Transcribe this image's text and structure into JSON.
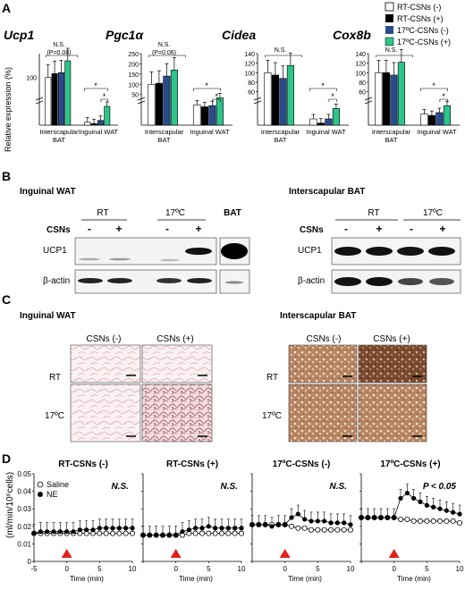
{
  "panels": {
    "A": "A",
    "B": "B",
    "C": "C",
    "D": "D"
  },
  "colors": {
    "rt_minus": "#ffffff",
    "rt_plus": "#000000",
    "c17_minus": "#2a4b8c",
    "c17_plus": "#2ec48a",
    "red_arrow": "#e0201b"
  },
  "legend_A": [
    {
      "label": "RT-CSNs (-)"
    },
    {
      "label": "RT-CSNs (+)"
    },
    {
      "label": "17ºC-CSNs (-)"
    },
    {
      "label": "17ºC-CSNs (+)"
    }
  ],
  "panelA": {
    "ylabel": "Relative expression (%)",
    "group1": "Interscapular",
    "group1b": "BAT",
    "group2": "Inguinal WAT",
    "genes": [
      {
        "name": "Ucp1",
        "ns": "N.S.",
        "p": "(P=0.08)"
      },
      {
        "name": "Pgc1α",
        "ns": "N.S.",
        "p": "(P=0.06)"
      },
      {
        "name": "Cidea",
        "ns": "N.S.",
        "p": ""
      },
      {
        "name": "Cox8b",
        "ns": "N.S.",
        "p": ""
      }
    ]
  },
  "chart_data": [
    {
      "type": "bar",
      "title": "Ucp1",
      "ylabel": "Relative expression (%)",
      "categories": [
        "Interscapular BAT",
        "Inguinal WAT"
      ],
      "series": [
        {
          "name": "RT-CSNs (-)",
          "values": [
            100,
            1
          ]
        },
        {
          "name": "RT-CSNs (+)",
          "values": [
            108,
            0.5
          ]
        },
        {
          "name": "17ºC-CSNs (-)",
          "values": [
            110,
            1.5
          ]
        },
        {
          "name": "17ºC-CSNs (+)",
          "values": [
            135,
            6
          ]
        }
      ]
    },
    {
      "type": "bar",
      "title": "Pgc1α",
      "ylabel": "",
      "ylim": [
        0,
        250
      ],
      "categories": [
        "Interscapular BAT",
        "Inguinal WAT"
      ],
      "series": [
        {
          "name": "RT-CSNs (-)",
          "values": [
            100,
            52
          ]
        },
        {
          "name": "RT-CSNs (+)",
          "values": [
            105,
            47
          ]
        },
        {
          "name": "17ºC-CSNs (-)",
          "values": [
            140,
            50
          ]
        },
        {
          "name": "17ºC-CSNs (+)",
          "values": [
            170,
            70
          ]
        }
      ]
    },
    {
      "type": "bar",
      "title": "Cidea",
      "ylabel": "",
      "ylim": [
        0,
        140
      ],
      "categories": [
        "Interscapular BAT",
        "Inguinal WAT"
      ],
      "series": [
        {
          "name": "RT-CSNs (-)",
          "values": [
            100,
            1.5
          ]
        },
        {
          "name": "RT-CSNs (+)",
          "values": [
            95,
            0.5
          ]
        },
        {
          "name": "17ºC-CSNs (-)",
          "values": [
            88,
            1.5
          ]
        },
        {
          "name": "17ºC-CSNs (+)",
          "values": [
            115,
            4
          ]
        }
      ]
    },
    {
      "type": "bar",
      "title": "Cox8b",
      "ylabel": "",
      "ylim": [
        0,
        140
      ],
      "categories": [
        "Interscapular BAT",
        "Inguinal WAT"
      ],
      "series": [
        {
          "name": "RT-CSNs (-)",
          "values": [
            100,
            8
          ]
        },
        {
          "name": "RT-CSNs (+)",
          "values": [
            100,
            7
          ]
        },
        {
          "name": "17ºC-CSNs (-)",
          "values": [
            95,
            9
          ]
        },
        {
          "name": "17ºC-CSNs (+)",
          "values": [
            122,
            14
          ]
        }
      ]
    },
    {
      "type": "line",
      "title": "RT-CSNs (-)",
      "xlabel": "Time (min)",
      "ylabel": "(ml/min/10⁶cells)",
      "xlim": [
        -5,
        10
      ],
      "ylim": [
        0,
        0.05
      ],
      "x": [
        -5,
        -4,
        -3,
        -2,
        -1,
        0,
        1,
        2,
        3,
        4,
        5,
        6,
        7,
        8,
        9,
        10
      ],
      "series": [
        {
          "name": "Saline",
          "values": [
            0.016,
            0.016,
            0.016,
            0.016,
            0.016,
            0.016,
            0.016,
            0.016,
            0.016,
            0.016,
            0.016,
            0.016,
            0.016,
            0.016,
            0.016,
            0.016
          ]
        },
        {
          "name": "NE",
          "values": [
            0.016,
            0.017,
            0.017,
            0.017,
            0.017,
            0.017,
            0.017,
            0.018,
            0.018,
            0.018,
            0.019,
            0.019,
            0.019,
            0.019,
            0.019,
            0.019
          ]
        }
      ],
      "annotation": "N.S."
    },
    {
      "type": "line",
      "title": "RT-CSNs (+)",
      "xlabel": "Time (min)",
      "ylabel": "",
      "xlim": [
        -5,
        10
      ],
      "ylim": [
        0,
        0.05
      ],
      "x": [
        -5,
        -4,
        -3,
        -2,
        -1,
        0,
        1,
        2,
        3,
        4,
        5,
        6,
        7,
        8,
        9,
        10
      ],
      "series": [
        {
          "name": "Saline",
          "values": [
            0.015,
            0.015,
            0.015,
            0.015,
            0.015,
            0.015,
            0.015,
            0.016,
            0.016,
            0.016,
            0.016,
            0.016,
            0.016,
            0.016,
            0.016,
            0.016
          ]
        },
        {
          "name": "NE",
          "values": [
            0.015,
            0.015,
            0.015,
            0.015,
            0.015,
            0.015,
            0.017,
            0.018,
            0.019,
            0.019,
            0.02,
            0.019,
            0.019,
            0.019,
            0.019,
            0.019
          ]
        }
      ],
      "annotation": "N.S."
    },
    {
      "type": "line",
      "title": "17ºC-CSNs (-)",
      "xlabel": "Time (min)",
      "ylabel": "",
      "xlim": [
        -5,
        10
      ],
      "ylim": [
        0,
        0.05
      ],
      "x": [
        -5,
        -4,
        -3,
        -2,
        -1,
        0,
        1,
        2,
        3,
        4,
        5,
        6,
        7,
        8,
        9,
        10
      ],
      "series": [
        {
          "name": "Saline",
          "values": [
            0.021,
            0.021,
            0.021,
            0.021,
            0.021,
            0.021,
            0.02,
            0.019,
            0.019,
            0.018,
            0.018,
            0.018,
            0.018,
            0.018,
            0.018,
            0.018
          ]
        },
        {
          "name": "NE",
          "values": [
            0.021,
            0.021,
            0.021,
            0.02,
            0.021,
            0.021,
            0.025,
            0.027,
            0.024,
            0.023,
            0.023,
            0.023,
            0.022,
            0.022,
            0.022,
            0.021
          ]
        }
      ],
      "annotation": "N.S."
    },
    {
      "type": "line",
      "title": "17ºC-CSNs (+)",
      "xlabel": "Time (min)",
      "ylabel": "",
      "xlim": [
        -5,
        10
      ],
      "ylim": [
        0,
        0.05
      ],
      "x": [
        -5,
        -4,
        -3,
        -2,
        -1,
        0,
        1,
        2,
        3,
        4,
        5,
        6,
        7,
        8,
        9,
        10
      ],
      "series": [
        {
          "name": "Saline",
          "values": [
            0.025,
            0.025,
            0.025,
            0.025,
            0.025,
            0.025,
            0.024,
            0.024,
            0.023,
            0.023,
            0.023,
            0.023,
            0.023,
            0.023,
            0.023,
            0.022
          ]
        },
        {
          "name": "NE",
          "values": [
            0.025,
            0.025,
            0.025,
            0.025,
            0.025,
            0.025,
            0.036,
            0.039,
            0.036,
            0.034,
            0.032,
            0.031,
            0.03,
            0.029,
            0.028,
            0.027
          ]
        }
      ],
      "annotation": "P < 0.05"
    }
  ],
  "panelD": {
    "yticks": [
      "0",
      "0.01",
      "0.02",
      "0.03",
      "0.04",
      "0.05"
    ],
    "xticks": [
      "-5",
      "0",
      "5",
      "10"
    ],
    "legend_saline": "Saline",
    "legend_ne": "NE"
  },
  "panelB": {
    "left_title": "Inguinal WAT",
    "right_title": "Interscapular BAT",
    "rt": "RT",
    "c17": "17ºC",
    "bat": "BAT",
    "csns": "CSNs",
    "minus": "-",
    "plus": "+",
    "ucp1": "UCP1",
    "actin": "β-actin"
  },
  "panelC": {
    "left_title": "Inguinal WAT",
    "right_title": "Interscapular BAT",
    "csns_minus": "CSNs (-)",
    "csns_plus": "CSNs (+)",
    "rt": "RT",
    "c17": "17ºC"
  }
}
